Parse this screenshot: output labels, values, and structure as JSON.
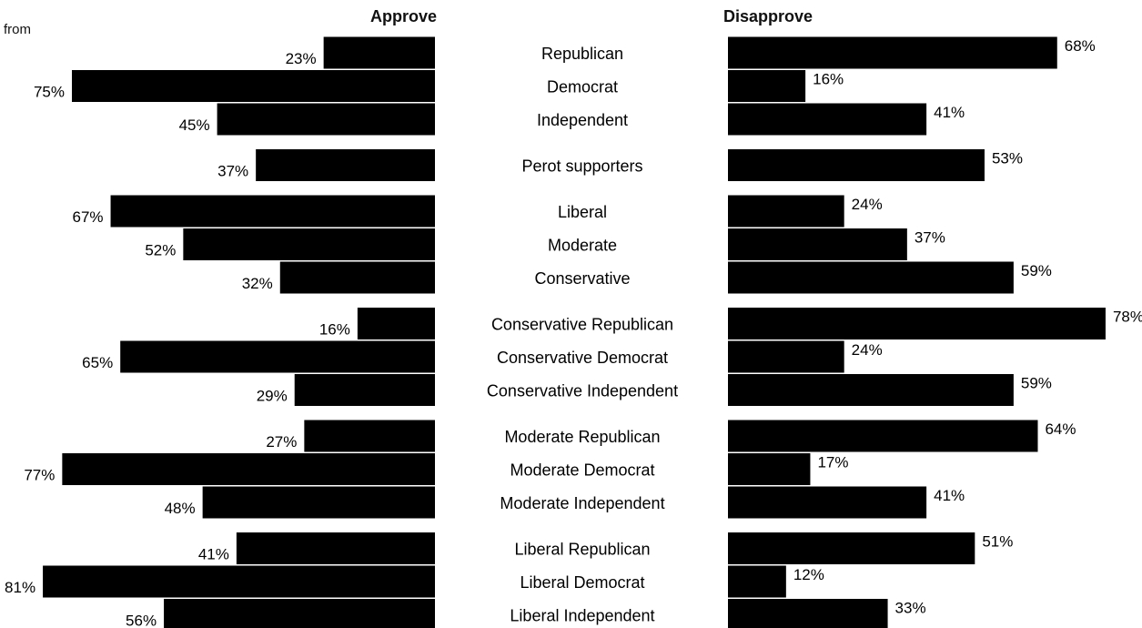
{
  "corner_note": "from",
  "chart_data": {
    "type": "bar",
    "orientation": "horizontal",
    "layout": "diverging",
    "categories": [
      "Republican",
      "Democrat",
      "Independent",
      "Perot supporters",
      "Liberal",
      "Moderate",
      "Conservative",
      "Conservative Republican",
      "Conservative Democrat",
      "Conservative Independent",
      "Moderate Republican",
      "Moderate Democrat",
      "Moderate Independent",
      "Liberal Republican",
      "Liberal Democrat",
      "Liberal Independent"
    ],
    "groups": [
      3,
      1,
      3,
      3,
      3,
      3
    ],
    "series": [
      {
        "name": "Approve",
        "values": [
          23,
          75,
          45,
          37,
          67,
          52,
          32,
          16,
          65,
          29,
          27,
          77,
          48,
          41,
          81,
          56
        ]
      },
      {
        "name": "Disapprove",
        "values": [
          68,
          16,
          41,
          53,
          24,
          37,
          59,
          78,
          24,
          59,
          64,
          17,
          41,
          51,
          12,
          33
        ]
      }
    ],
    "value_suffix": "%",
    "bar_color": "#000000",
    "grid": false
  }
}
